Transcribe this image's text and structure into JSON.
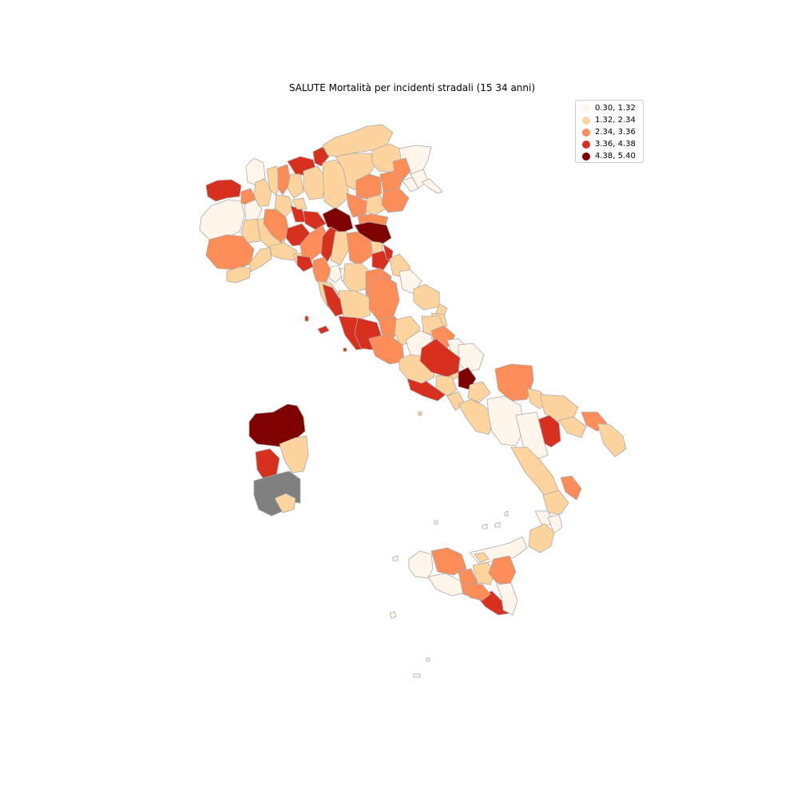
{
  "map": {
    "title": "SALUTE Mortalità per incidenti stradali (15 34 anni)",
    "legend_placement": "top-right",
    "legend": [
      {
        "label": "0.30, 1.32",
        "color": "#fff5eb"
      },
      {
        "label": "1.32, 2.34",
        "color": "#fdd49e"
      },
      {
        "label": "2.34, 3.36",
        "color": "#fc8d59"
      },
      {
        "label": "3.36, 4.38",
        "color": "#d7301f"
      },
      {
        "label": "4.38, 5.40",
        "color": "#7f0000"
      }
    ],
    "missing_color": "#808080",
    "border_color": "#a9a9a9"
  }
}
